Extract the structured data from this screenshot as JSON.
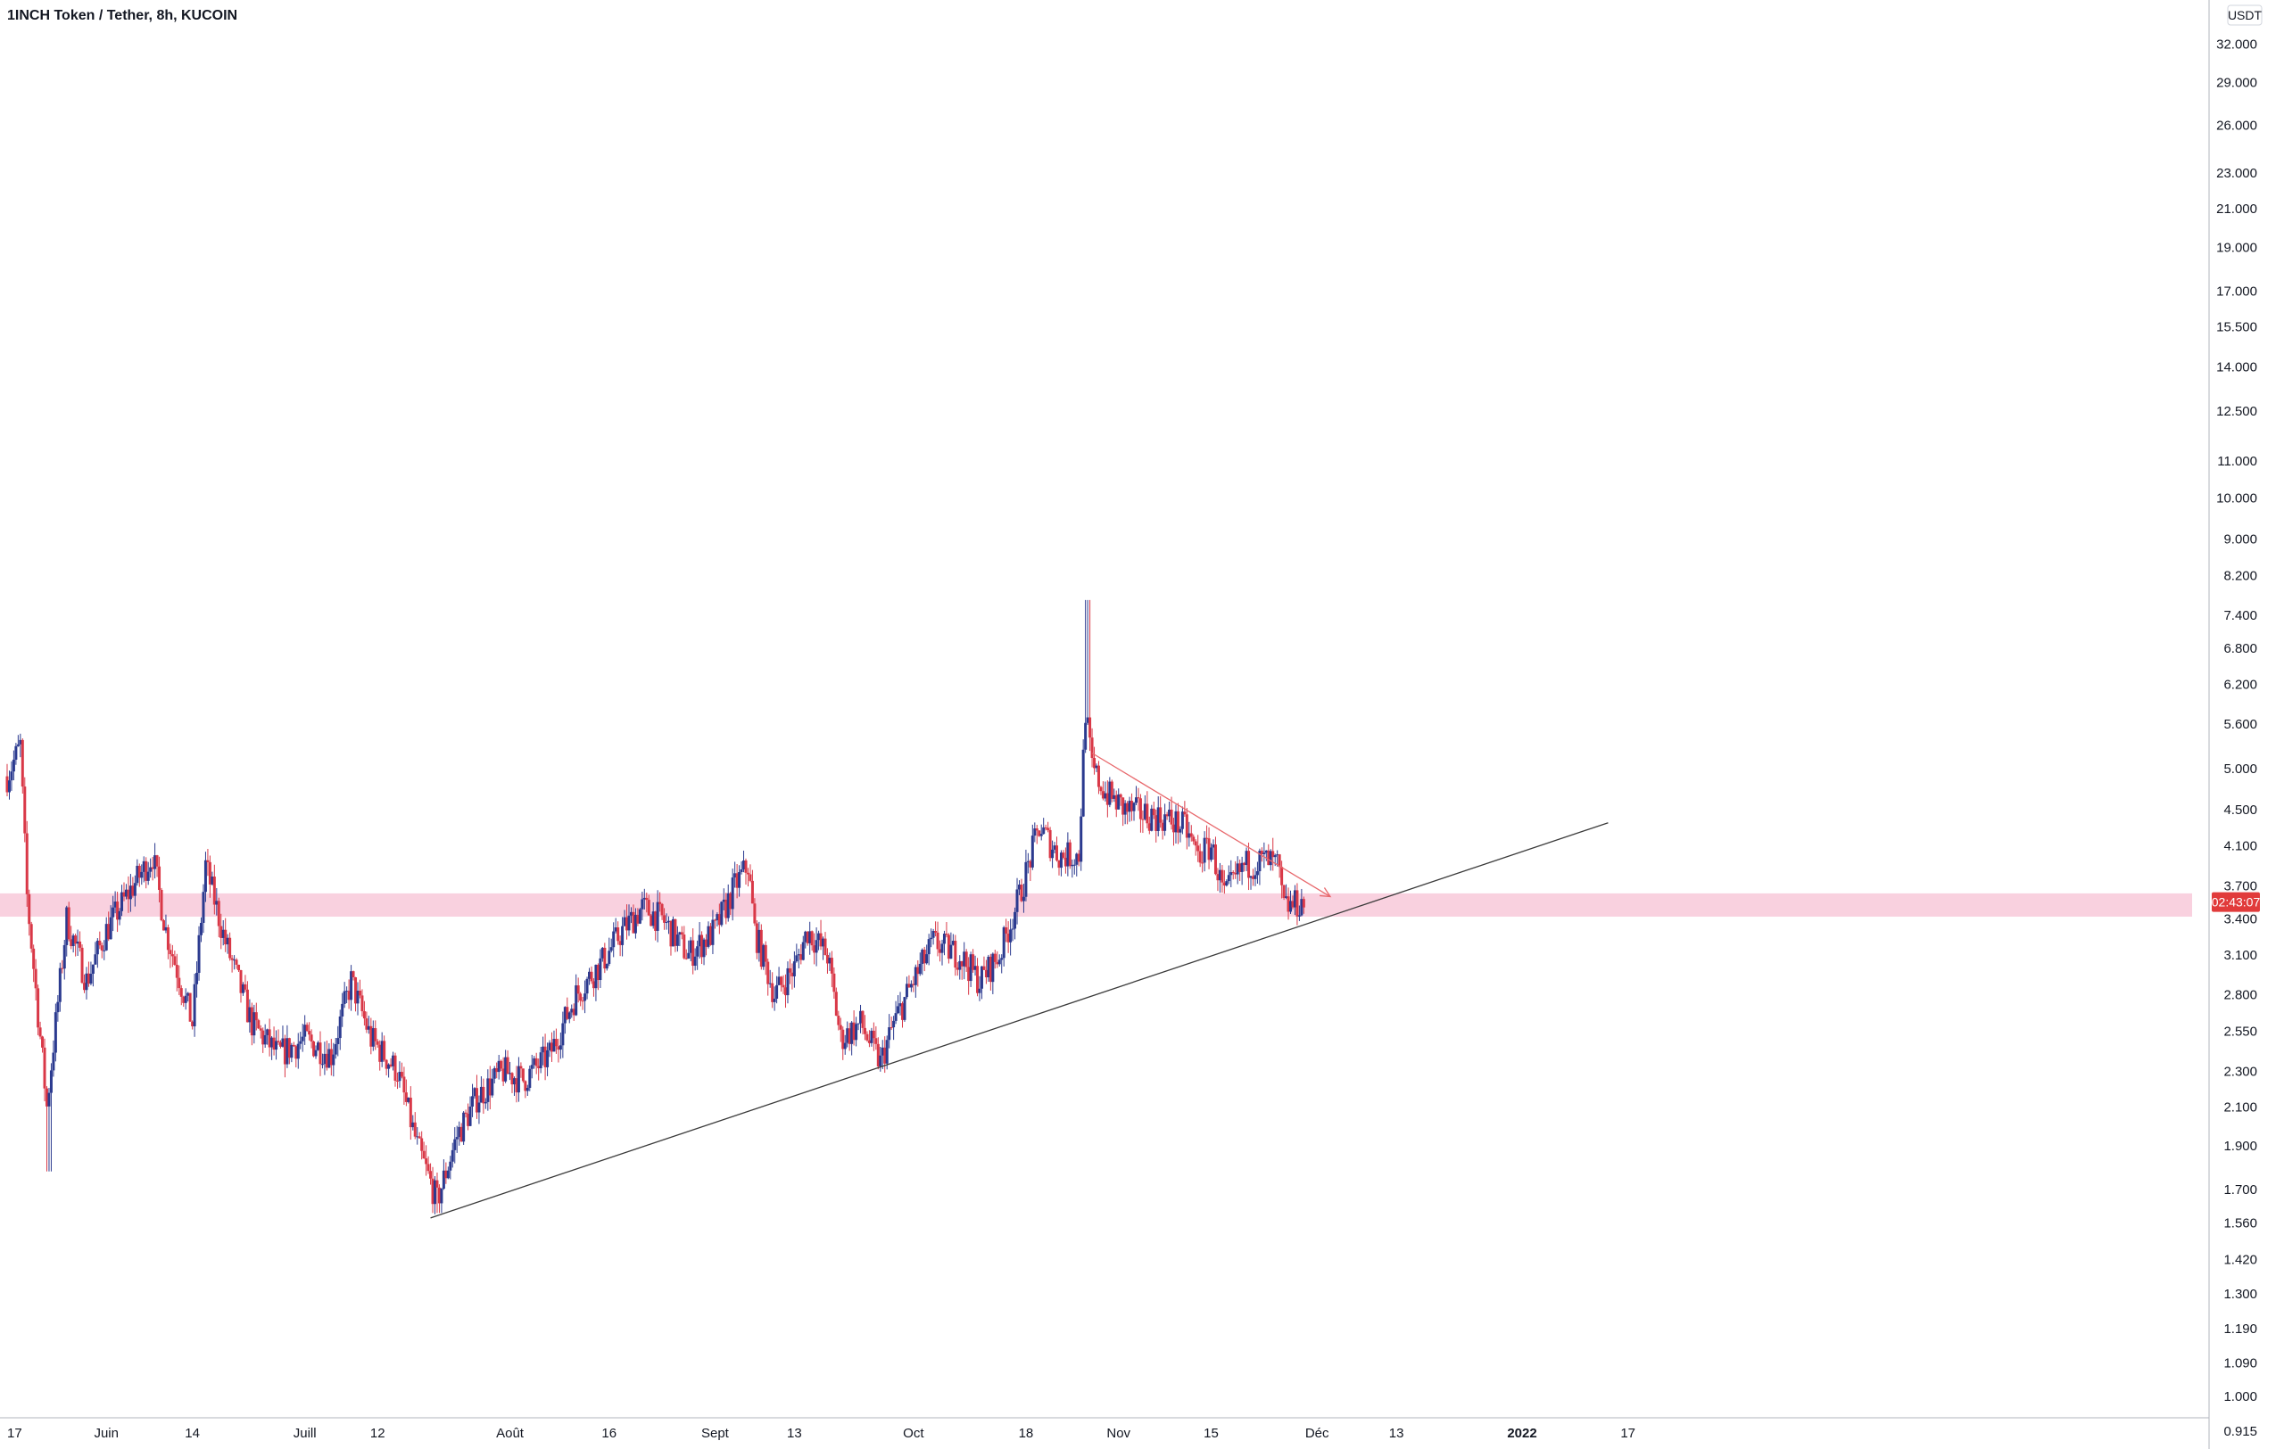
{
  "title": "1INCH Token / Tether, 8h, KUCOIN",
  "currency": "USDT",
  "countdown": "02:43:07",
  "colors": {
    "up": "#2b3a8f",
    "down": "#d93847",
    "support_zone": "#f8c9d9",
    "trendline": "#3a3a3a",
    "projection": "#e8686c",
    "badge": "#e13b3b",
    "axis_line": "#b2b5be",
    "background": "#ffffff"
  },
  "y_ticks": [
    "32.000",
    "29.000",
    "26.000",
    "23.000",
    "21.000",
    "19.000",
    "17.000",
    "15.500",
    "14.000",
    "12.500",
    "11.000",
    "10.000",
    "9.000",
    "8.200",
    "7.400",
    "6.800",
    "6.200",
    "5.600",
    "5.000",
    "4.500",
    "4.100",
    "3.700",
    "3.400",
    "3.100",
    "2.800",
    "2.550",
    "2.300",
    "2.100",
    "1.900",
    "1.700",
    "1.560",
    "1.420",
    "1.300",
    "1.190",
    "1.090",
    "1.000",
    "0.915"
  ],
  "x_ticks": [
    {
      "label": "17",
      "date": "2021-05-17"
    },
    {
      "label": "Juin",
      "date": "2021-06-01"
    },
    {
      "label": "14",
      "date": "2021-06-14"
    },
    {
      "label": "Juill",
      "date": "2021-07-01"
    },
    {
      "label": "12",
      "date": "2021-07-12"
    },
    {
      "label": "Août",
      "date": "2021-08-01"
    },
    {
      "label": "16",
      "date": "2021-08-16"
    },
    {
      "label": "Sept",
      "date": "2021-09-01"
    },
    {
      "label": "13",
      "date": "2021-09-13"
    },
    {
      "label": "Oct",
      "date": "2021-10-01"
    },
    {
      "label": "18",
      "date": "2021-10-18"
    },
    {
      "label": "Nov",
      "date": "2021-11-01"
    },
    {
      "label": "15",
      "date": "2021-11-15"
    },
    {
      "label": "Déc",
      "date": "2021-12-01"
    },
    {
      "label": "13",
      "date": "2021-12-13"
    },
    {
      "label": "2022",
      "date": "2022-01-01",
      "bold": true
    },
    {
      "label": "17",
      "date": "2022-01-17"
    }
  ],
  "chart_data": {
    "type": "candlestick",
    "title": "1INCH Token / Tether, 8h, KUCOIN",
    "y_scale": "log",
    "ylim": [
      0.9,
      33
    ],
    "xlim": [
      "2021-05-17",
      "2022-01-28"
    ],
    "interval": "8h",
    "price_path": [
      [
        "2021-05-17",
        4.9
      ],
      [
        "2021-05-19",
        5.3
      ],
      [
        "2021-05-20",
        3.6
      ],
      [
        "2021-05-23",
        2.1
      ],
      [
        "2021-05-26",
        3.4
      ],
      [
        "2021-05-29",
        2.9
      ],
      [
        "2021-06-01",
        3.3
      ],
      [
        "2021-06-04",
        3.6
      ],
      [
        "2021-06-08",
        4.0
      ],
      [
        "2021-06-10",
        3.3
      ],
      [
        "2021-06-14",
        2.6
      ],
      [
        "2021-06-16",
        3.9
      ],
      [
        "2021-06-19",
        3.2
      ],
      [
        "2021-06-23",
        2.6
      ],
      [
        "2021-06-27",
        2.4
      ],
      [
        "2021-07-01",
        2.5
      ],
      [
        "2021-07-05",
        2.4
      ],
      [
        "2021-07-08",
        2.9
      ],
      [
        "2021-07-11",
        2.5
      ],
      [
        "2021-07-15",
        2.3
      ],
      [
        "2021-07-18",
        1.9
      ],
      [
        "2021-07-21",
        1.65
      ],
      [
        "2021-07-24",
        1.95
      ],
      [
        "2021-07-27",
        2.15
      ],
      [
        "2021-07-31",
        2.3
      ],
      [
        "2021-08-03",
        2.25
      ],
      [
        "2021-08-07",
        2.4
      ],
      [
        "2021-08-11",
        2.8
      ],
      [
        "2021-08-15",
        3.05
      ],
      [
        "2021-08-18",
        3.3
      ],
      [
        "2021-08-21",
        3.5
      ],
      [
        "2021-08-24",
        3.4
      ],
      [
        "2021-08-28",
        3.1
      ],
      [
        "2021-09-01",
        3.3
      ],
      [
        "2021-09-04",
        3.7
      ],
      [
        "2021-09-06",
        3.9
      ],
      [
        "2021-09-07",
        3.3
      ],
      [
        "2021-09-10",
        2.8
      ],
      [
        "2021-09-13",
        3.0
      ],
      [
        "2021-09-15",
        3.3
      ],
      [
        "2021-09-18",
        3.1
      ],
      [
        "2021-09-20",
        2.5
      ],
      [
        "2021-09-23",
        2.6
      ],
      [
        "2021-09-26",
        2.35
      ],
      [
        "2021-09-28",
        2.6
      ],
      [
        "2021-10-01",
        2.9
      ],
      [
        "2021-10-04",
        3.2
      ],
      [
        "2021-10-08",
        3.1
      ],
      [
        "2021-10-11",
        2.9
      ],
      [
        "2021-10-14",
        3.1
      ],
      [
        "2021-10-17",
        3.6
      ],
      [
        "2021-10-20",
        4.3
      ],
      [
        "2021-10-23",
        4.0
      ],
      [
        "2021-10-26",
        4.0
      ],
      [
        "2021-10-27",
        5.8
      ],
      [
        "2021-10-28",
        5.0
      ],
      [
        "2021-10-30",
        4.7
      ],
      [
        "2021-11-02",
        4.5
      ],
      [
        "2021-11-05",
        4.45
      ],
      [
        "2021-11-08",
        4.4
      ],
      [
        "2021-11-11",
        4.3
      ],
      [
        "2021-11-13",
        4.0
      ],
      [
        "2021-11-15",
        4.1
      ],
      [
        "2021-11-17",
        3.6
      ],
      [
        "2021-11-20",
        3.9
      ],
      [
        "2021-11-23",
        3.95
      ],
      [
        "2021-11-25",
        3.9
      ],
      [
        "2021-11-26",
        3.5
      ],
      [
        "2021-11-29",
        3.55
      ]
    ],
    "support_zone": {
      "low": 3.42,
      "high": 3.63
    },
    "trendline": {
      "from": [
        "2021-07-20",
        1.58
      ],
      "to": [
        "2022-01-14",
        4.35
      ]
    },
    "projection_arrow": {
      "from": [
        "2021-10-28",
        5.2
      ],
      "to": [
        "2021-12-03",
        3.6
      ]
    },
    "last_price": 3.55
  }
}
